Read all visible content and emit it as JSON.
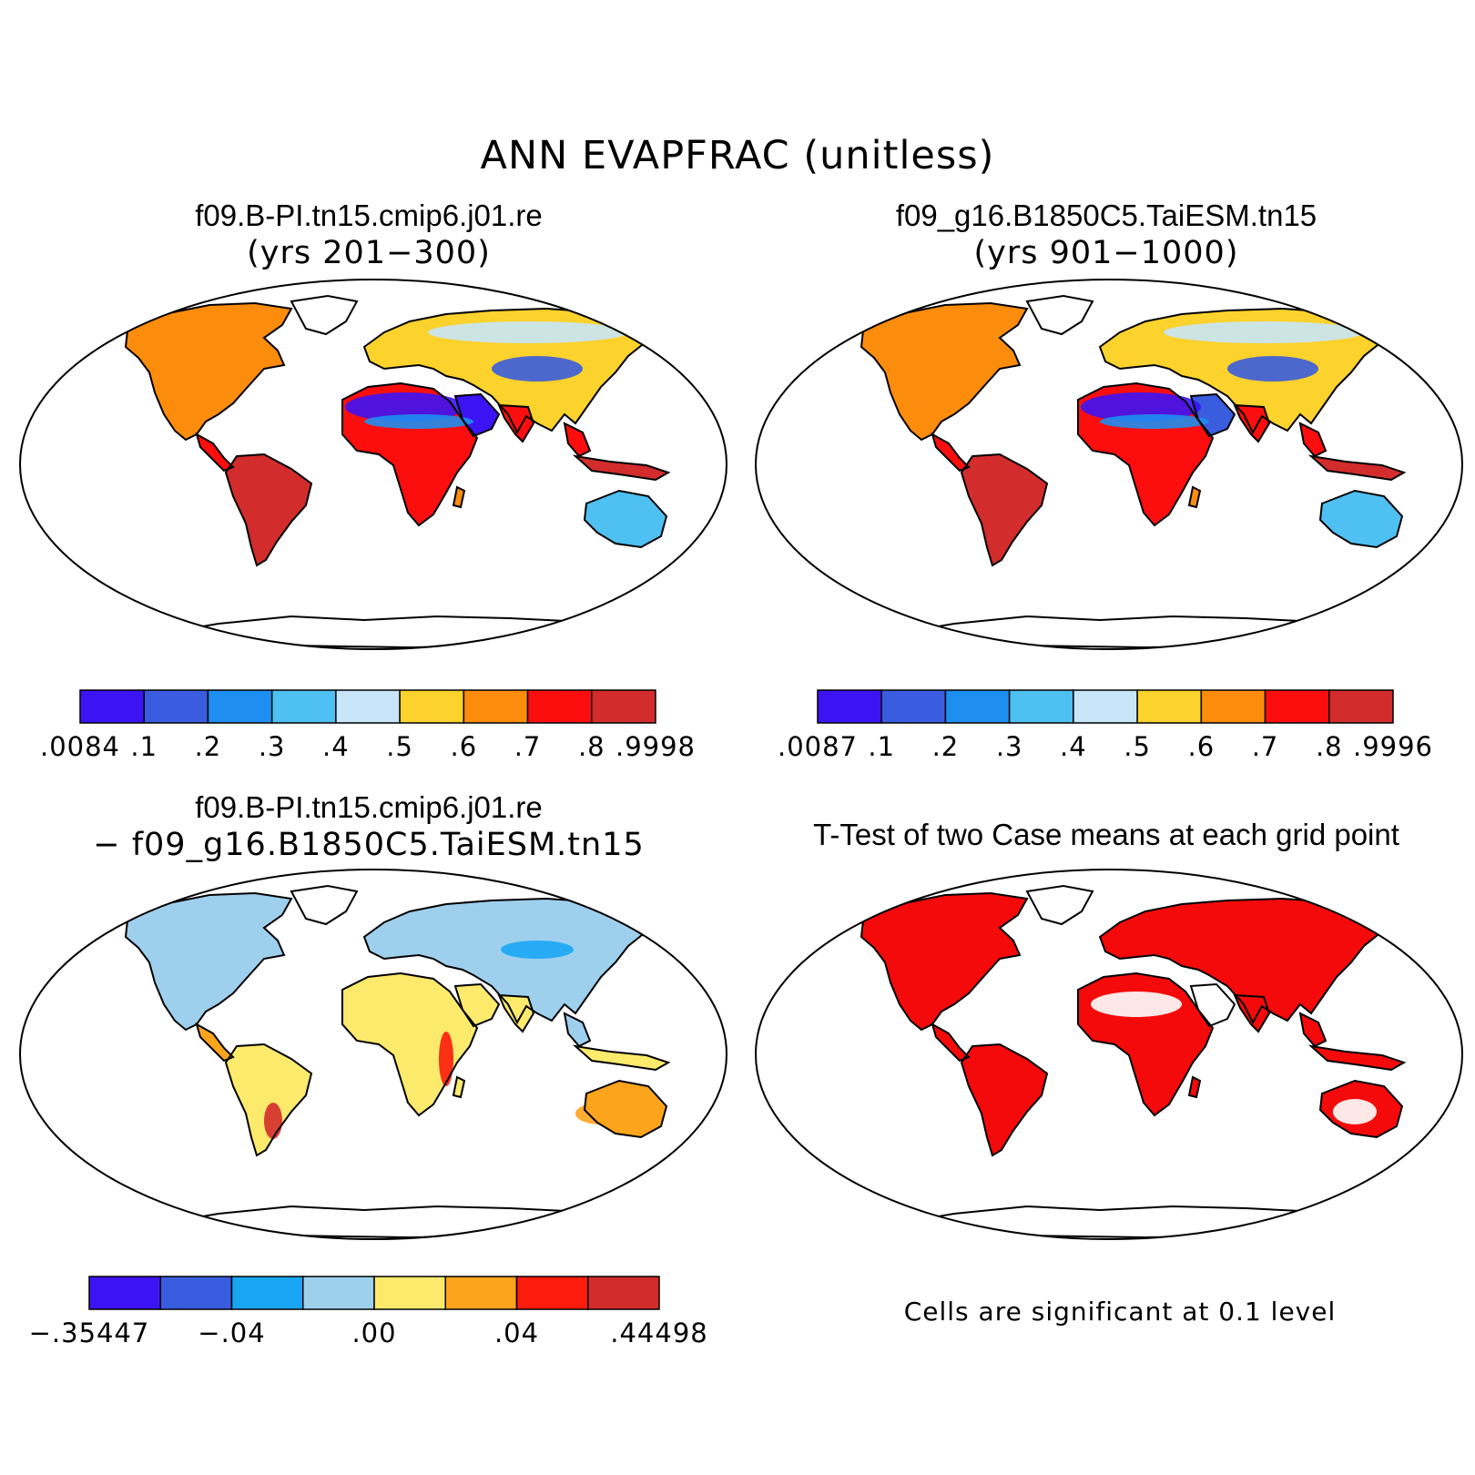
{
  "title": "ANN EVAPFRAC (unitless)",
  "panels": [
    {
      "title": "f09.B-PI.tn15.cmip6.j01.re",
      "subtitle": "(yrs 201−300)"
    },
    {
      "title": "f09_g16.B1850C5.TaiESM.tn15",
      "subtitle": "(yrs 901−1000)"
    },
    {
      "title": "f09.B-PI.tn15.cmip6.j01.re",
      "subtitle": "− f09_g16.B1850C5.TaiESM.tn15"
    },
    {
      "title": "T-Test of two Case means at each grid point",
      "subtitle": ""
    }
  ],
  "colorbars": [
    {
      "labels": [
        ".0084",
        ".1",
        ".2",
        ".3",
        ".4",
        ".5",
        ".6",
        ".7",
        ".8",
        ".9998"
      ],
      "colors": [
        "#3c14f4",
        "#3a5cde",
        "#1e8ff0",
        "#4fc0f2",
        "#c8e6f8",
        "#fcd22c",
        "#fc8c0c",
        "#fc0e0e",
        "#d22c2c"
      ]
    },
    {
      "labels": [
        ".0087",
        ".1",
        ".2",
        ".3",
        ".4",
        ".5",
        ".6",
        ".7",
        ".8",
        ".9996"
      ],
      "colors": [
        "#3c14f4",
        "#3a5cde",
        "#1e8ff0",
        "#4fc0f2",
        "#c8e6f8",
        "#fcd22c",
        "#fc8c0c",
        "#fc0e0e",
        "#d22c2c"
      ]
    },
    {
      "labels": [
        "−.35447",
        "−.04",
        ".00",
        ".04",
        ".44498"
      ],
      "colors": [
        "#3c14f4",
        "#3a5cde",
        "#18a6f4",
        "#9ed0ee",
        "#fbea6c",
        "#fca41c",
        "#fc1c0c",
        "#d22c2c"
      ]
    }
  ],
  "significance_note": "Cells are significant at 0.1 level",
  "significance_color": "#f40a0a"
}
